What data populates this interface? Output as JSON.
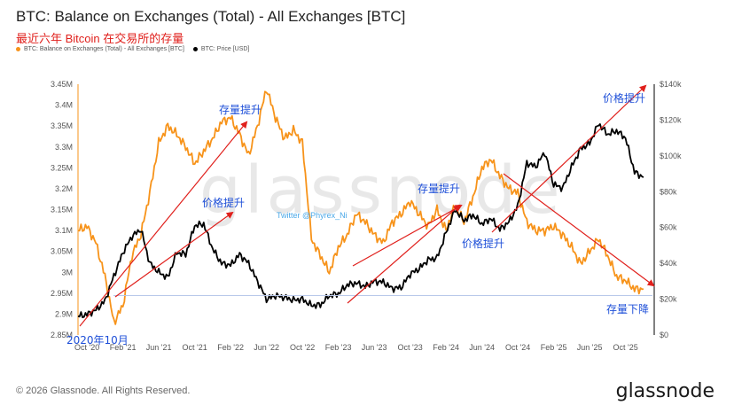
{
  "header": {
    "title": "BTC: Balance on Exchanges (Total) - All Exchanges [BTC]",
    "subtitle": "最近六年 Bitcoin 在交易所的存量"
  },
  "legend": [
    {
      "label": "BTC: Balance on Exchanges (Total) - All Exchanges [BTC]",
      "color": "#f7931a"
    },
    {
      "label": "BTC: Price [USD]",
      "color": "#000000"
    }
  ],
  "watermark": "glassnode",
  "footer": {
    "copyright": "© 2026 Glassnode. All Rights Reserved.",
    "brand": "glassnode"
  },
  "chart_data": {
    "type": "line",
    "x_tick_labels": [
      "Oct '20",
      "Feb '21",
      "Jun '21",
      "Oct '21",
      "Feb '22",
      "Jun '22",
      "Oct '22",
      "Feb '23",
      "Jun '23",
      "Oct '23",
      "Feb '24",
      "Jun '24",
      "Oct '24",
      "Feb '25",
      "Jun '25",
      "Oct '25"
    ],
    "xlim": [
      "2020-09",
      "2026-01"
    ],
    "y_left": {
      "ticks": [
        "2.85M",
        "2.9M",
        "2.95M",
        "3M",
        "3.05M",
        "3.1M",
        "3.15M",
        "3.2M",
        "3.25M",
        "3.3M",
        "3.35M",
        "3.4M",
        "3.45M"
      ],
      "lim": [
        2.85,
        3.45
      ],
      "unit": "M BTC"
    },
    "y_right": {
      "ticks": [
        "$0",
        "$20k",
        "$40k",
        "$60k",
        "$80k",
        "$100k",
        "$120k",
        "$140k"
      ],
      "lim": [
        0,
        140
      ],
      "unit": "k USD"
    },
    "series": [
      {
        "name": "BTC: Balance on Exchanges (Total) - All Exchanges [BTC]",
        "axis": "left",
        "color": "#f7931a",
        "points": [
          [
            "2020-09",
            3.1
          ],
          [
            "2020-10",
            3.11
          ],
          [
            "2020-11",
            3.07
          ],
          [
            "2020-12",
            2.99
          ],
          [
            "2021-01",
            2.88
          ],
          [
            "2021-02",
            2.92
          ],
          [
            "2021-03",
            3.04
          ],
          [
            "2021-04",
            3.09
          ],
          [
            "2021-05",
            3.19
          ],
          [
            "2021-06",
            3.31
          ],
          [
            "2021-07",
            3.35
          ],
          [
            "2021-08",
            3.33
          ],
          [
            "2021-09",
            3.3
          ],
          [
            "2021-10",
            3.26
          ],
          [
            "2021-11",
            3.29
          ],
          [
            "2021-12",
            3.32
          ],
          [
            "2022-01",
            3.36
          ],
          [
            "2022-02",
            3.37
          ],
          [
            "2022-03",
            3.33
          ],
          [
            "2022-04",
            3.28
          ],
          [
            "2022-05",
            3.35
          ],
          [
            "2022-06",
            3.44
          ],
          [
            "2022-07",
            3.37
          ],
          [
            "2022-08",
            3.32
          ],
          [
            "2022-09",
            3.34
          ],
          [
            "2022-10",
            3.31
          ],
          [
            "2022-11",
            3.08
          ],
          [
            "2022-12",
            3.04
          ],
          [
            "2023-01",
            3.0
          ],
          [
            "2023-02",
            3.06
          ],
          [
            "2023-03",
            3.09
          ],
          [
            "2023-04",
            3.14
          ],
          [
            "2023-05",
            3.12
          ],
          [
            "2023-06",
            3.09
          ],
          [
            "2023-07",
            3.07
          ],
          [
            "2023-08",
            3.12
          ],
          [
            "2023-09",
            3.14
          ],
          [
            "2023-10",
            3.17
          ],
          [
            "2023-11",
            3.14
          ],
          [
            "2023-12",
            3.11
          ],
          [
            "2024-01",
            3.15
          ],
          [
            "2024-02",
            3.1
          ],
          [
            "2024-03",
            3.16
          ],
          [
            "2024-04",
            3.12
          ],
          [
            "2024-05",
            3.18
          ],
          [
            "2024-06",
            3.25
          ],
          [
            "2024-07",
            3.27
          ],
          [
            "2024-08",
            3.23
          ],
          [
            "2024-09",
            3.2
          ],
          [
            "2024-10",
            3.19
          ],
          [
            "2024-11",
            3.12
          ],
          [
            "2024-12",
            3.1
          ],
          [
            "2025-01",
            3.1
          ],
          [
            "2025-02",
            3.11
          ],
          [
            "2025-03",
            3.09
          ],
          [
            "2025-04",
            3.06
          ],
          [
            "2025-05",
            3.02
          ],
          [
            "2025-06",
            3.05
          ],
          [
            "2025-07",
            3.08
          ],
          [
            "2025-08",
            3.04
          ],
          [
            "2025-09",
            2.99
          ],
          [
            "2025-10",
            2.98
          ],
          [
            "2025-11",
            2.96
          ],
          [
            "2025-12",
            2.96
          ]
        ]
      },
      {
        "name": "BTC: Price [USD]",
        "axis": "right",
        "color": "#000000",
        "points": [
          [
            "2020-09",
            10.5
          ],
          [
            "2020-10",
            11.5
          ],
          [
            "2020-11",
            14
          ],
          [
            "2020-12",
            19
          ],
          [
            "2021-01",
            33
          ],
          [
            "2021-02",
            46
          ],
          [
            "2021-03",
            55
          ],
          [
            "2021-04",
            59
          ],
          [
            "2021-05",
            40
          ],
          [
            "2021-06",
            35
          ],
          [
            "2021-07",
            32
          ],
          [
            "2021-08",
            46
          ],
          [
            "2021-09",
            45
          ],
          [
            "2021-10",
            61
          ],
          [
            "2021-11",
            62
          ],
          [
            "2021-12",
            48
          ],
          [
            "2022-01",
            40
          ],
          [
            "2022-02",
            39
          ],
          [
            "2022-03",
            45
          ],
          [
            "2022-04",
            40
          ],
          [
            "2022-05",
            30
          ],
          [
            "2022-06",
            20
          ],
          [
            "2022-07",
            22
          ],
          [
            "2022-08",
            21
          ],
          [
            "2022-09",
            19.5
          ],
          [
            "2022-10",
            20
          ],
          [
            "2022-11",
            16.5
          ],
          [
            "2022-12",
            16.8
          ],
          [
            "2023-01",
            22
          ],
          [
            "2023-02",
            23
          ],
          [
            "2023-03",
            28
          ],
          [
            "2023-04",
            29
          ],
          [
            "2023-05",
            27
          ],
          [
            "2023-06",
            30
          ],
          [
            "2023-07",
            29.5
          ],
          [
            "2023-08",
            26
          ],
          [
            "2023-09",
            26.5
          ],
          [
            "2023-10",
            34
          ],
          [
            "2023-11",
            37
          ],
          [
            "2023-12",
            42
          ],
          [
            "2024-01",
            43
          ],
          [
            "2024-02",
            57
          ],
          [
            "2024-03",
            70
          ],
          [
            "2024-04",
            64
          ],
          [
            "2024-05",
            67
          ],
          [
            "2024-06",
            62
          ],
          [
            "2024-07",
            65
          ],
          [
            "2024-08",
            59
          ],
          [
            "2024-09",
            63
          ],
          [
            "2024-10",
            72
          ],
          [
            "2024-11",
            96
          ],
          [
            "2024-12",
            94
          ],
          [
            "2025-01",
            102
          ],
          [
            "2025-02",
            84
          ],
          [
            "2025-03",
            82
          ],
          [
            "2025-04",
            94
          ],
          [
            "2025-05",
            104
          ],
          [
            "2025-06",
            107
          ],
          [
            "2025-07",
            118
          ],
          [
            "2025-08",
            112
          ],
          [
            "2025-09",
            114
          ],
          [
            "2025-10",
            110
          ],
          [
            "2025-11",
            91
          ],
          [
            "2025-12",
            88
          ]
        ]
      }
    ],
    "annotations": [
      {
        "label": "存量提升",
        "color": "#1e4fd8"
      },
      {
        "label": "价格提升",
        "color": "#1e4fd8"
      },
      {
        "label": "存量提升",
        "color": "#1e4fd8"
      },
      {
        "label": "价格提升",
        "color": "#1e4fd8"
      },
      {
        "label": "价格提升",
        "color": "#1e4fd8"
      },
      {
        "label": "存量下降",
        "color": "#1e4fd8"
      },
      {
        "label": "2020年10月",
        "color": "#1e4fd8"
      },
      {
        "label": "Twitter @Phyrex_Ni",
        "color": "#4aa8e8"
      }
    ],
    "grid": false,
    "legend_position": "top-left"
  }
}
